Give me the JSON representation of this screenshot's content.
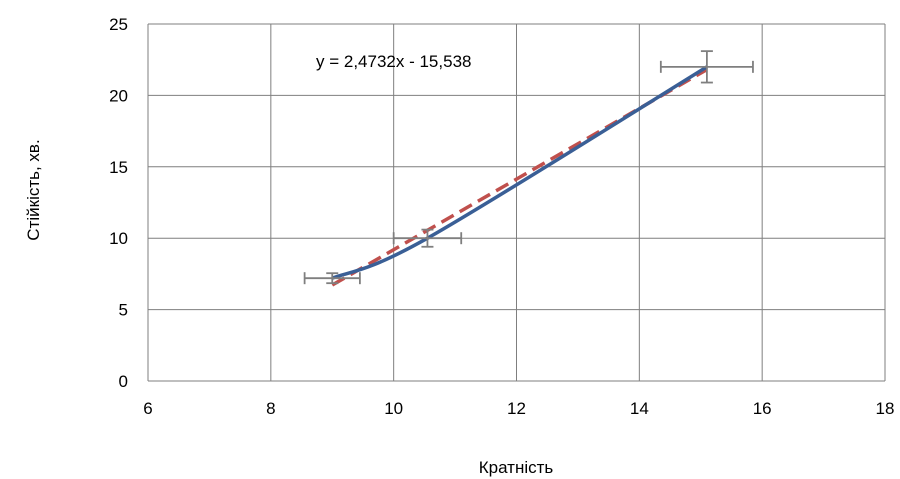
{
  "chart_data": {
    "type": "line",
    "xlabel": "Кратність",
    "ylabel": "Стійкість, хв.",
    "xlim": [
      6,
      18
    ],
    "ylim": [
      0,
      25
    ],
    "x_ticks": [
      6,
      8,
      10,
      12,
      14,
      16,
      18
    ],
    "y_ticks": [
      0,
      5,
      10,
      15,
      20,
      25
    ],
    "x_tick_labels": [
      "6",
      "8",
      "10",
      "12",
      "14",
      "16",
      "18"
    ],
    "y_tick_labels": [
      "0",
      "5",
      "10",
      "15",
      "20",
      "25"
    ],
    "grid": true,
    "series": [
      {
        "x": [
          9.0,
          10.55,
          15.1
        ],
        "y": [
          7.2,
          10.0,
          22.0
        ],
        "line_style": "smooth",
        "color": "#3A5F96",
        "error_x": [
          0.45,
          0.55,
          0.75
        ],
        "error_y": [
          0.35,
          0.6,
          1.1
        ],
        "error_color": "#7F7F7F"
      }
    ],
    "trendline": {
      "type": "linear",
      "slope": 2.4732,
      "intercept": -15.538,
      "x_range": [
        9.0,
        15.1
      ],
      "color": "#C0504D",
      "style": "dashed",
      "equation_label": "y = 2,4732x - 15,538"
    },
    "colors": {
      "grid": "#7F7F7F",
      "axis": "#7F7F7F",
      "series": "#3A5F96",
      "trendline": "#C0504D"
    }
  }
}
